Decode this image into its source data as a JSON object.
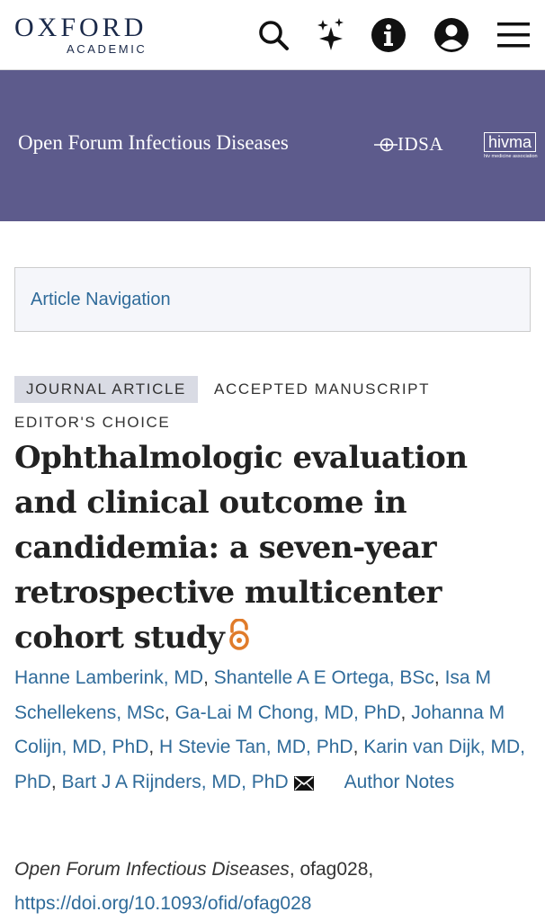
{
  "header": {
    "logo_main": "OXFORD",
    "logo_sub": "ACADEMIC",
    "icons": [
      "search-icon",
      "sparkle-icon",
      "info-icon",
      "account-icon",
      "menu-icon"
    ]
  },
  "banner": {
    "journal_title": "Open Forum Infectious Diseases",
    "idsa_label": "IDSA",
    "hivma_label": "hivma",
    "hivma_sub": "hiv medicine association",
    "color": "#5d5b8c"
  },
  "article_nav": {
    "label": "Article Navigation"
  },
  "tags": {
    "journal_article": "JOURNAL ARTICLE",
    "accepted": "ACCEPTED MANUSCRIPT",
    "editors_choice": "EDITOR'S CHOICE"
  },
  "article": {
    "title": "Ophthalmologic evaluation and clinical outcome in candidemia: a seven-year retrospective multicenter cohort study",
    "open_access_icon": "open-access-icon"
  },
  "authors": [
    "Hanne Lamberink, MD",
    "Shantelle A E Ortega, BSc",
    "Isa M Schellekens, MSc",
    "Ga-Lai M Chong, MD, PhD",
    "Johanna M Colijn, MD, PhD",
    "H Stevie Tan, MD, PhD",
    "Karin van Dijk, MD, PhD",
    "Bart J A Rijnders, MD, PhD"
  ],
  "author_notes": "Author Notes",
  "citation": {
    "journal": "Open Forum Infectious Diseases",
    "article_id": ", ofag028,",
    "doi": "https://doi.org/10.1093/ofid/ofag028"
  },
  "colors": {
    "link": "#2f6b9a",
    "oa_orange": "#e07b2a",
    "logo_navy": "#1b2a4a"
  }
}
